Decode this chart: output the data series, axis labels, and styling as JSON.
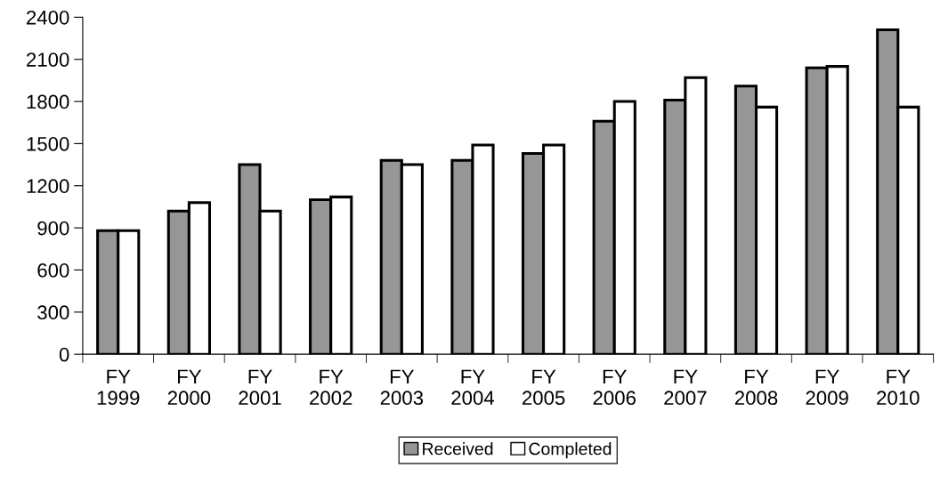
{
  "chart_data": {
    "type": "bar",
    "categories": [
      "FY\n1999",
      "FY\n2000",
      "FY\n2001",
      "FY\n2002",
      "FY\n2003",
      "FY\n2004",
      "FY\n2005",
      "FY\n2006",
      "FY\n2007",
      "FY\n2008",
      "FY\n2009",
      "FY\n2010"
    ],
    "series": [
      {
        "name": "Received",
        "color": "#969696",
        "values": [
          880,
          1020,
          1350,
          1100,
          1380,
          1380,
          1430,
          1660,
          1810,
          1910,
          2040,
          2310
        ]
      },
      {
        "name": "Completed",
        "color": "#ffffff",
        "values": [
          880,
          1080,
          1020,
          1120,
          1350,
          1490,
          1490,
          1800,
          1970,
          1760,
          2050,
          1760
        ]
      }
    ],
    "ylim": [
      0,
      2400
    ],
    "yticks": [
      0,
      300,
      600,
      900,
      1200,
      1500,
      1800,
      2100,
      2400
    ],
    "grid": false,
    "legend": "bottom"
  }
}
